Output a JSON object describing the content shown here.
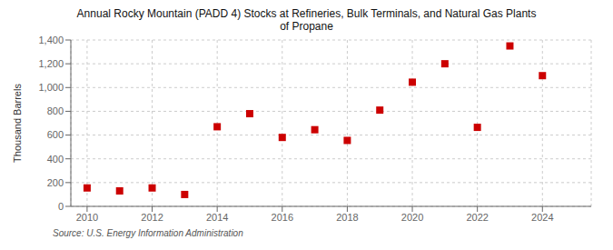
{
  "chart_data": {
    "type": "scatter",
    "title": "Annual Rocky Mountain (PADD 4) Stocks at Refineries, Bulk Terminals, and Natural Gas Plants\nof Propane",
    "ylabel": "Thousand Barrels",
    "source": "Source: U.S. Energy Information Administration",
    "x": [
      2010,
      2011,
      2012,
      2013,
      2014,
      2015,
      2016,
      2017,
      2018,
      2019,
      2020,
      2021,
      2022,
      2023,
      2024
    ],
    "values": [
      155,
      130,
      155,
      100,
      670,
      780,
      580,
      645,
      555,
      810,
      1045,
      1200,
      665,
      1350,
      1100
    ],
    "color": "#cc0000",
    "marker": "square",
    "xlim": [
      2009.5,
      2025.5
    ],
    "ylim": [
      0,
      1400
    ],
    "xticks": [
      2010,
      2012,
      2014,
      2016,
      2018,
      2020,
      2022,
      2024
    ],
    "yticks": [
      0,
      200,
      400,
      600,
      800,
      {
        "value": 1000,
        "label": "1,000"
      },
      {
        "value": 1200,
        "label": "1,200"
      },
      {
        "value": 1400,
        "label": "1,400"
      }
    ],
    "grid": true
  }
}
